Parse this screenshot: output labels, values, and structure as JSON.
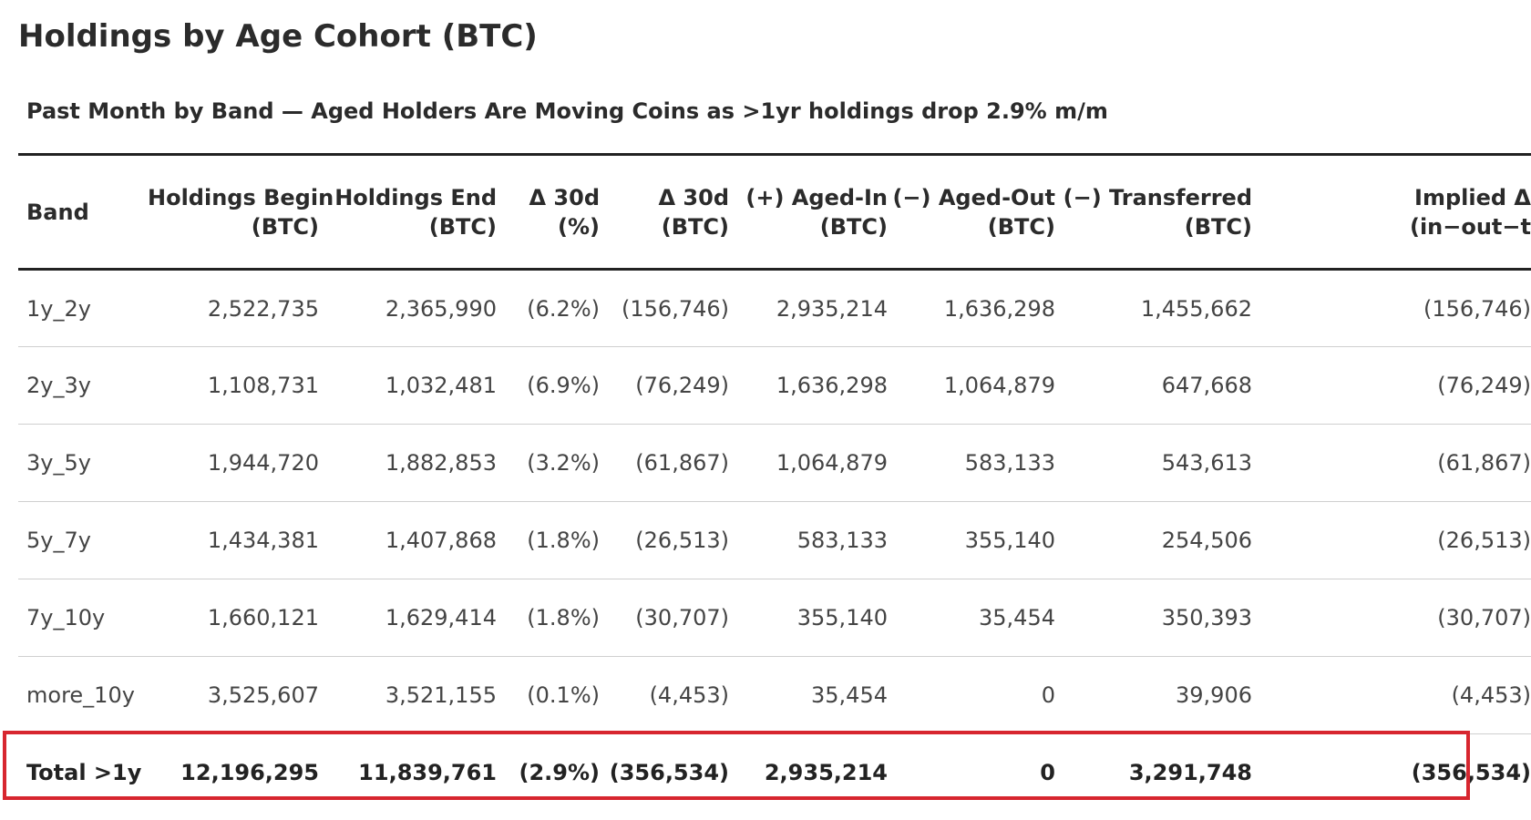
{
  "title": "Holdings by Age Cohort (BTC)",
  "subtitle": "Past Month by Band — Aged Holders Are Moving Coins as >1yr holdings drop 2.9% m/m",
  "table": {
    "headers": [
      [
        "",
        "Band"
      ],
      [
        "Holdings Begin",
        "(BTC)"
      ],
      [
        "Holdings End",
        "(BTC)"
      ],
      [
        "Δ 30d",
        "(%)"
      ],
      [
        "Δ 30d",
        "(BTC)"
      ],
      [
        "(+) Aged-In",
        "(BTC)"
      ],
      [
        "(−) Aged-Out",
        "(BTC)"
      ],
      [
        "(−) Transferred",
        "(BTC)"
      ],
      [
        "Implied Δ",
        "(in−out−t"
      ]
    ],
    "rows": [
      [
        "1y_2y",
        "2,522,735",
        "2,365,990",
        "(6.2%)",
        "(156,746)",
        "2,935,214",
        "1,636,298",
        "1,455,662",
        "(156,746)"
      ],
      [
        "2y_3y",
        "1,108,731",
        "1,032,481",
        "(6.9%)",
        "(76,249)",
        "1,636,298",
        "1,064,879",
        "647,668",
        "(76,249)"
      ],
      [
        "3y_5y",
        "1,944,720",
        "1,882,853",
        "(3.2%)",
        "(61,867)",
        "1,064,879",
        "583,133",
        "543,613",
        "(61,867)"
      ],
      [
        "5y_7y",
        "1,434,381",
        "1,407,868",
        "(1.8%)",
        "(26,513)",
        "583,133",
        "355,140",
        "254,506",
        "(26,513)"
      ],
      [
        "7y_10y",
        "1,660,121",
        "1,629,414",
        "(1.8%)",
        "(30,707)",
        "355,140",
        "35,454",
        "350,393",
        "(30,707)"
      ],
      [
        "more_10y",
        "3,525,607",
        "3,521,155",
        "(0.1%)",
        "(4,453)",
        "35,454",
        "0",
        "39,906",
        "(4,453)"
      ]
    ],
    "total": [
      "Total >1y",
      "12,196,295",
      "11,839,761",
      "(2.9%)",
      "(356,534)",
      "2,935,214",
      "0",
      "3,291,748",
      "(356,534)"
    ]
  },
  "colors": {
    "highlight": "#d7262f",
    "rule": "#222222",
    "divider": "#cfcfcf"
  }
}
